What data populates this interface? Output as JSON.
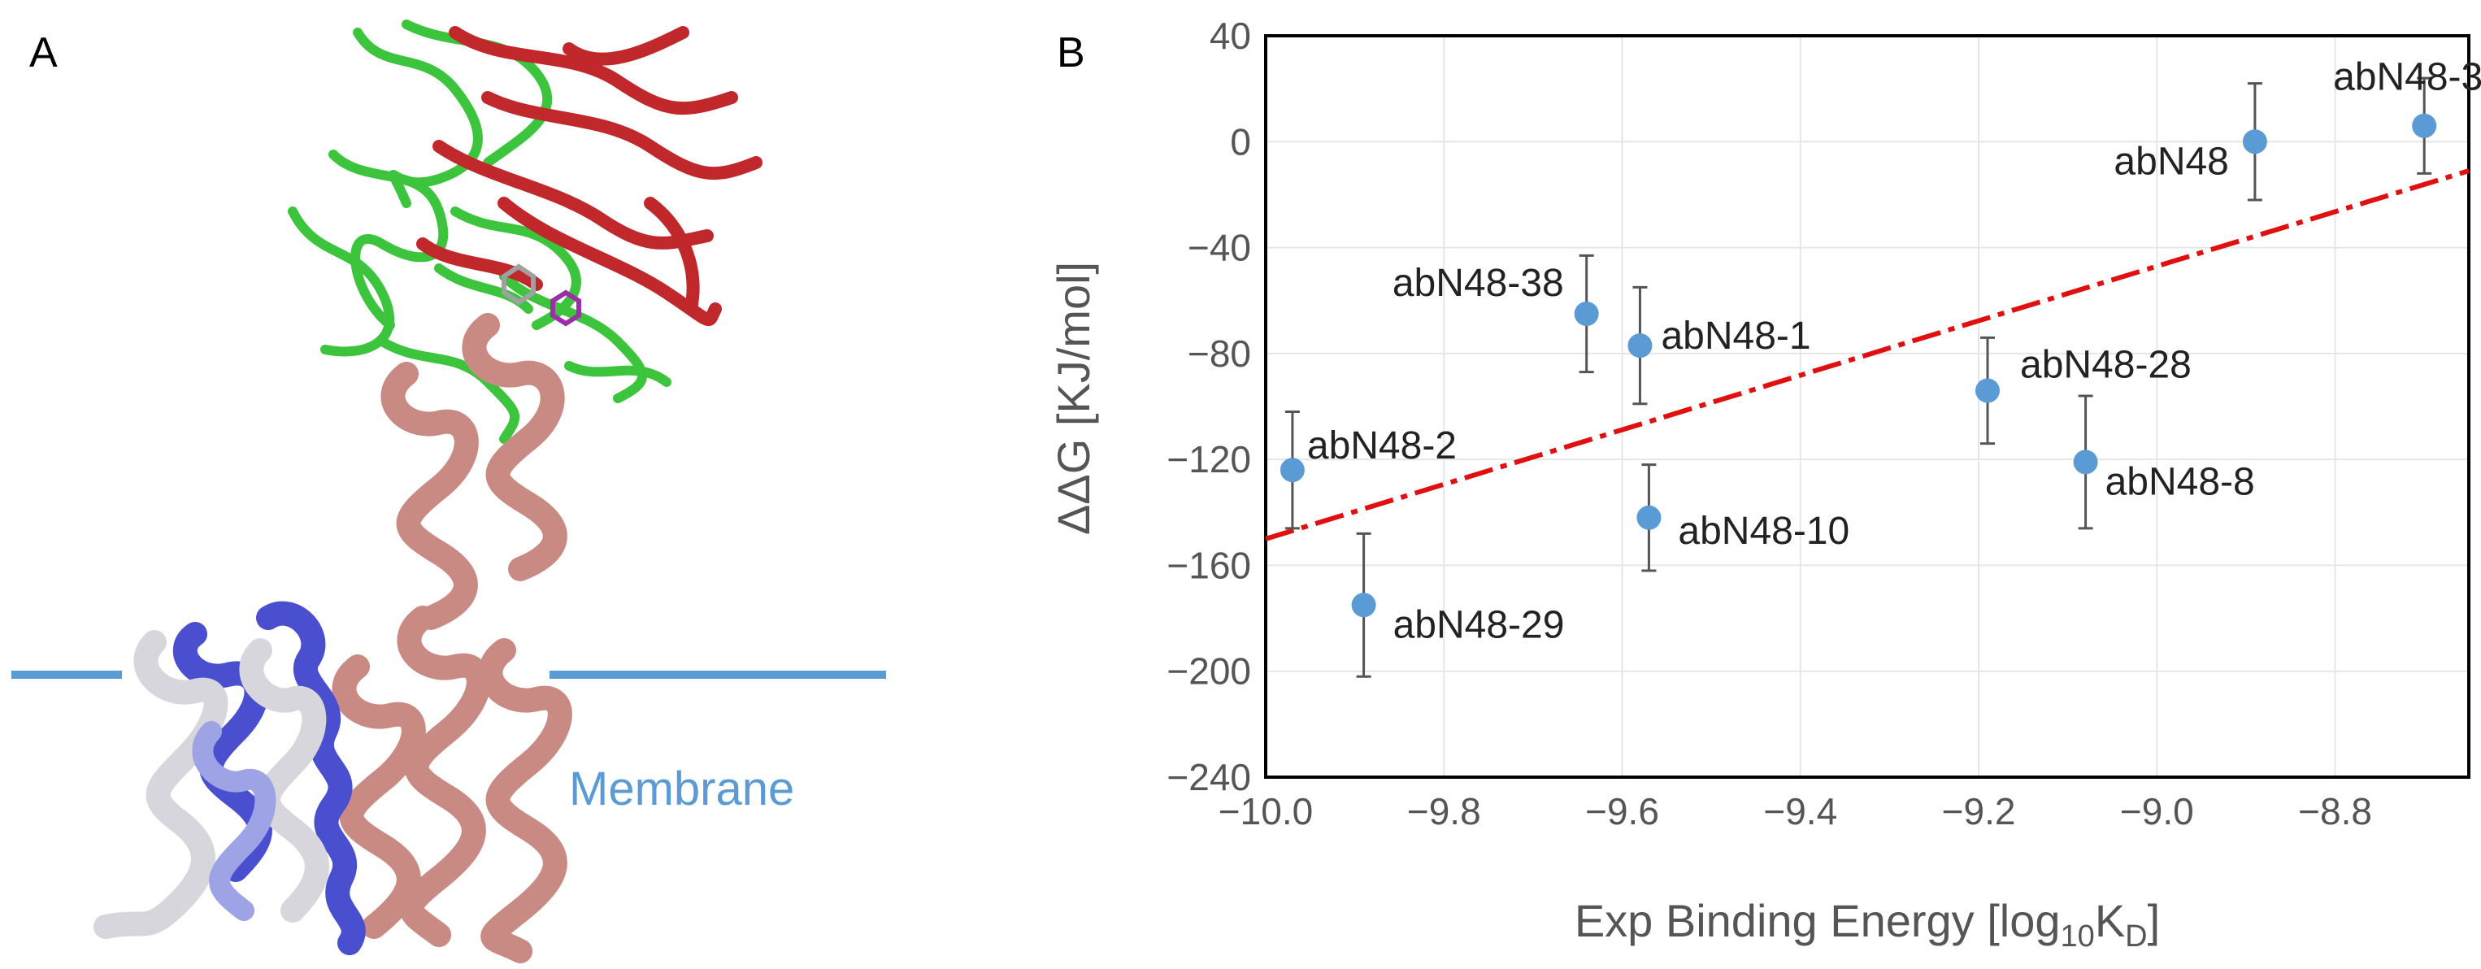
{
  "panel_a": {
    "label": "A",
    "membrane_label": "Membrane",
    "colors": {
      "membrane_line": "#5B9BD5",
      "domain_green": "#3cc43c",
      "domain_red": "#c0282c",
      "helix_salmon": "#c98a84",
      "helix_blue": "#4a4fcf",
      "helix_gray": "#cfcfcf"
    }
  },
  "panel_b": {
    "label": "B",
    "chart_data": {
      "type": "scatter",
      "xlabel": "Exp Binding Energy [log",
      "xlabel_sub": "10",
      "xlabel_mid": "K",
      "xlabel_sub2": "D",
      "xlabel_end": "]",
      "ylabel": "ΔΔG [KJ/mol]",
      "xlim": [
        -10.0,
        -8.65
      ],
      "ylim": [
        -240,
        40
      ],
      "xticks": [
        -10.0,
        -9.8,
        -9.6,
        -9.4,
        -9.2,
        -9.0,
        -8.8
      ],
      "xtick_labels": [
        "−10.0",
        "−9.8",
        "−9.6",
        "−9.4",
        "−9.2",
        "−9.0",
        "−8.8"
      ],
      "yticks": [
        40,
        0,
        -40,
        -80,
        -120,
        -160,
        -200,
        -240
      ],
      "ytick_labels": [
        "40",
        "0",
        "−40",
        "−80",
        "−120",
        "−160",
        "−200",
        "−240"
      ],
      "grid": true,
      "colors": {
        "point": "#5B9BD5",
        "trend": "#e01010",
        "errorbar": "#555555",
        "grid": "#e6e6e6"
      },
      "points": [
        {
          "label": "abN48-3",
          "x": -8.7,
          "y": 6,
          "err": 18
        },
        {
          "label": "abN48",
          "x": -8.89,
          "y": 0,
          "err": 22
        },
        {
          "label": "abN48-38",
          "x": -9.64,
          "y": -65,
          "err": 22
        },
        {
          "label": "abN48-1",
          "x": -9.58,
          "y": -77,
          "err": 22
        },
        {
          "label": "abN48-28",
          "x": -9.19,
          "y": -94,
          "err": 20
        },
        {
          "label": "abN48-2",
          "x": -9.97,
          "y": -124,
          "err": 22
        },
        {
          "label": "abN48-8",
          "x": -9.08,
          "y": -121,
          "err": 25
        },
        {
          "label": "abN48-10",
          "x": -9.57,
          "y": -142,
          "err": 20
        },
        {
          "label": "abN48-29",
          "x": -9.89,
          "y": -175,
          "err": 27
        }
      ],
      "trendline": {
        "x": [
          -10.0,
          -8.65
        ],
        "y": [
          -150,
          -11
        ]
      }
    }
  }
}
